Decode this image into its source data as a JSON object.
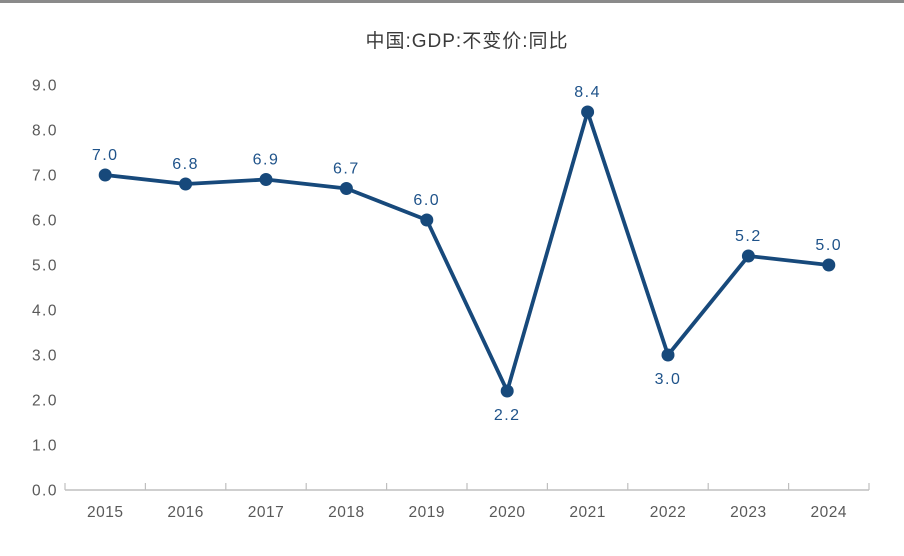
{
  "page": {
    "background": "#ffffff",
    "top_rule_color": "#8a8a8a"
  },
  "chart_data": {
    "type": "line",
    "title": "中国:GDP:不变价:同比",
    "categories": [
      "2015",
      "2016",
      "2017",
      "2018",
      "2019",
      "2020",
      "2021",
      "2022",
      "2023",
      "2024"
    ],
    "series": [
      {
        "name": "中国:GDP:不变价:同比",
        "values": [
          7.0,
          6.8,
          6.9,
          6.7,
          6.0,
          2.2,
          8.4,
          3.0,
          5.2,
          5.0
        ]
      }
    ],
    "point_labels": [
      "7.0",
      "6.8",
      "6.9",
      "6.7",
      "6.0",
      "2.2",
      "8.4",
      "3.0",
      "5.2",
      "5.0"
    ],
    "point_label_positions": [
      "above",
      "above",
      "above",
      "above",
      "above",
      "below",
      "above",
      "below",
      "above",
      "above"
    ],
    "xlabel": "",
    "ylabel": "",
    "ylim": [
      0,
      9
    ],
    "ytick_labels": [
      "0.0",
      "1.0",
      "2.0",
      "3.0",
      "4.0",
      "5.0",
      "6.0",
      "7.0",
      "8.0",
      "9.0"
    ],
    "grid": false,
    "legend_position": "none",
    "colors": {
      "line": "#17497B",
      "marker": "#17497B",
      "data_label": "#1F538A",
      "axis_line": "#BFBFBF",
      "tick_label": "#595959",
      "title": "#3A3A3A"
    }
  }
}
